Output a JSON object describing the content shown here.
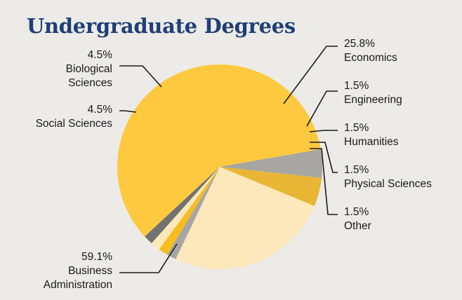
{
  "chart_data": {
    "type": "pie",
    "title": "Undergraduate Degrees",
    "start_angle_deg": 112.5,
    "direction": "clockwise",
    "slices": [
      {
        "label": "Economics",
        "value": 25.8,
        "value_label": "25.8%",
        "color": "#fde8bb",
        "lines": [
          "25.8%",
          "Economics"
        ]
      },
      {
        "label": "Engineering",
        "value": 1.5,
        "value_label": "1.5%",
        "color": "#a7a6a2",
        "lines": [
          "1.5%",
          "Engineering"
        ]
      },
      {
        "label": "Humanities",
        "value": 1.5,
        "value_label": "1.5%",
        "color": "#f6bd1c",
        "lines": [
          "1.5%",
          "Humanities"
        ]
      },
      {
        "label": "Physical Sciences",
        "value": 1.5,
        "value_label": "1.5%",
        "color": "#fde8bb",
        "lines": [
          "1.5%",
          "Physical Sciences"
        ]
      },
      {
        "label": "Other",
        "value": 1.5,
        "value_label": "1.5%",
        "color": "#727272",
        "lines": [
          "1.5%",
          "Other"
        ]
      },
      {
        "label": "Business Administration",
        "value": 59.1,
        "value_label": "59.1%",
        "color": "#fec93e",
        "lines": [
          "59.1%",
          "Business",
          "Administration"
        ]
      },
      {
        "label": "Social Sciences",
        "value": 4.5,
        "value_label": "4.5%",
        "color": "#a7a6a2",
        "lines": [
          "4.5%",
          "Social Sciences"
        ]
      },
      {
        "label": "Biological Sciences",
        "value": 4.5,
        "value_label": "4.5%",
        "color": "#e8b535",
        "lines": [
          "4.5%",
          "Biological",
          "Sciences"
        ]
      }
    ]
  }
}
